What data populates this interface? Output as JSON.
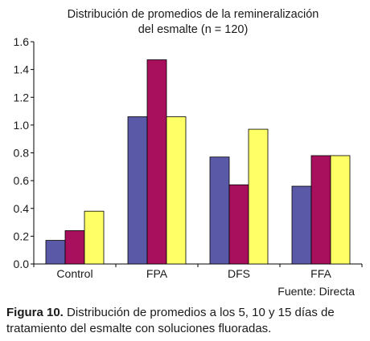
{
  "chart_data": {
    "type": "bar",
    "title_lines": [
      "Distribución de promedios de la remineralización",
      "del esmalte (n = 120)"
    ],
    "categories": [
      "Control",
      "FPA",
      "DFS",
      "FFA"
    ],
    "series": [
      {
        "values": [
          0.17,
          1.06,
          0.77,
          0.56
        ],
        "color": "#5a59a8"
      },
      {
        "values": [
          0.24,
          1.47,
          0.57,
          0.78
        ],
        "color": "#a80f5c"
      },
      {
        "values": [
          0.38,
          1.06,
          0.97,
          0.78
        ],
        "color": "#ffff66"
      }
    ],
    "ylim": [
      0,
      1.6
    ],
    "yticks": [
      "0.0",
      "0.2",
      "0.4",
      "0.6",
      "0.8",
      "1.0",
      "1.2",
      "1.4",
      "1.6"
    ],
    "grid": false,
    "source": "Fuente: Directa"
  },
  "caption": {
    "label": "Figura 10.",
    "text": " Distribución de promedios a los 5, 10 y 15 días de tratamiento del esmalte con soluciones fluoradas."
  }
}
